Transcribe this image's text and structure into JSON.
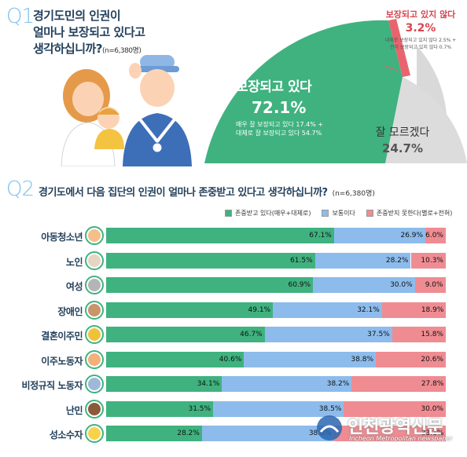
{
  "q1": {
    "num": "Q1",
    "title_lines": [
      "경기도민의 인권이",
      "얼마나 보장되고 있다고",
      "생각하십니까?"
    ],
    "n": "(n=6,380명)",
    "guaranteed": {
      "label": "보장되고 있다",
      "pct": "72.1%",
      "detail1": "매우 잘 보장되고 있다 17.4% +",
      "detail2": "대체로 잘 보장되고 있다 54.7%"
    },
    "not_guaranteed": {
      "label": "보장되고 있지 않다",
      "pct": "3.2%",
      "detail1": "대체로 보장되고 있지 않다 2.5% +",
      "detail2": "전혀 보장되고 있지 않다 0.7%"
    },
    "unknown": {
      "label": "잘 모르겠다",
      "pct": "24.7%"
    },
    "colors": {
      "guaranteed": "#3fb27f",
      "not_guaranteed": "#e8646e",
      "unknown": "#d9d9d9"
    }
  },
  "q2": {
    "num": "Q2",
    "title": "경기도에서 다음 집단의 인권이 얼마나 존중받고 있다고 생각하십니까?",
    "n": "(n=6,380명)"
  },
  "chart_data": {
    "type": "bar",
    "stacked": true,
    "orientation": "horizontal",
    "categories": [
      "아동청소년",
      "노인",
      "여성",
      "장애인",
      "결혼이주민",
      "이주노동자",
      "비정규직 노동자",
      "난민",
      "성소수자"
    ],
    "series": [
      {
        "name": "존중받고 있다(매우+대체로)",
        "color": "#3fb27f",
        "values": [
          67.1,
          61.5,
          60.9,
          49.1,
          46.7,
          40.6,
          34.1,
          31.5,
          28.2
        ]
      },
      {
        "name": "보통이다",
        "color": "#8dbcec",
        "values": [
          26.9,
          28.2,
          30.0,
          32.1,
          37.5,
          38.8,
          38.2,
          38.5,
          38.8
        ]
      },
      {
        "name": "존중받지 못한다(별로+전혀)",
        "color": "#ef8c92",
        "values": [
          6.0,
          10.3,
          9.0,
          18.9,
          15.8,
          20.6,
          27.8,
          30.0,
          33.1
        ]
      }
    ],
    "labels": [
      [
        "67.1%",
        "26.9%",
        "6.0%"
      ],
      [
        "61.5%",
        "28.2%",
        "10.3%"
      ],
      [
        "60.9%",
        "30.0%",
        "9.0%"
      ],
      [
        "49.1%",
        "32.1%",
        "18.9%"
      ],
      [
        "46.7%",
        "37.5%",
        "15.8%"
      ],
      [
        "40.6%",
        "38.8%",
        "20.6%"
      ],
      [
        "34.1%",
        "38.2%",
        "27.8%"
      ],
      [
        "31.5%",
        "38.5%",
        "30.0%"
      ],
      [
        "28.2%",
        "38.8%",
        "33.1%"
      ]
    ],
    "legend_position": "top-right",
    "xlim": [
      0,
      100
    ]
  },
  "watermark": {
    "ko": "인천광역신문",
    "en": "Incheon Metropolitan newspaper"
  }
}
